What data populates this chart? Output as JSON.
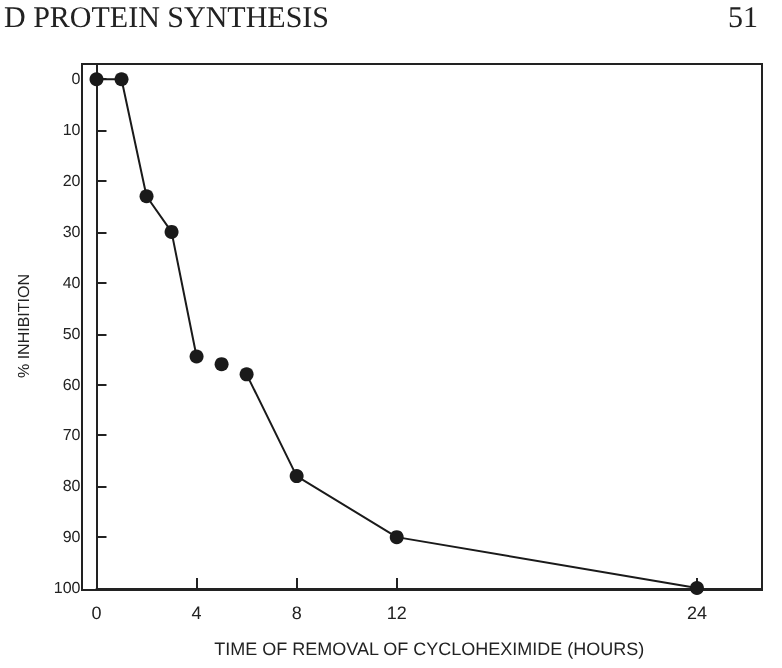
{
  "chart_data": {
    "type": "line",
    "xlabel": "TIME OF REMOVAL OF CYCLOHEXIMIDE (HOURS)",
    "ylabel": "% INHIBITION",
    "annotations": [
      "D PROTEIN SYNTHESIS",
      "51"
    ],
    "series": [
      {
        "color": "#1a1a1a",
        "x": [
          0,
          1,
          2,
          3,
          4
        ],
        "values": [
          0,
          0,
          23,
          30,
          54.5
        ]
      },
      {
        "type": "scatter",
        "color": "#1a1a1a",
        "x": [
          5
        ],
        "values": [
          56
        ]
      },
      {
        "color": "#1a1a1a",
        "x": [
          6,
          8,
          12,
          24
        ],
        "values": [
          58,
          78,
          90,
          100
        ]
      }
    ],
    "xlim": [
      0,
      26.6
    ],
    "xticks": [
      0,
      4,
      8,
      12,
      24
    ],
    "ylim": [
      100,
      -3
    ],
    "yticks": [
      0,
      10,
      20,
      30,
      40,
      50,
      60,
      70,
      80,
      90,
      100
    ],
    "grid": false,
    "marker": "circle",
    "line_style": "solid"
  }
}
